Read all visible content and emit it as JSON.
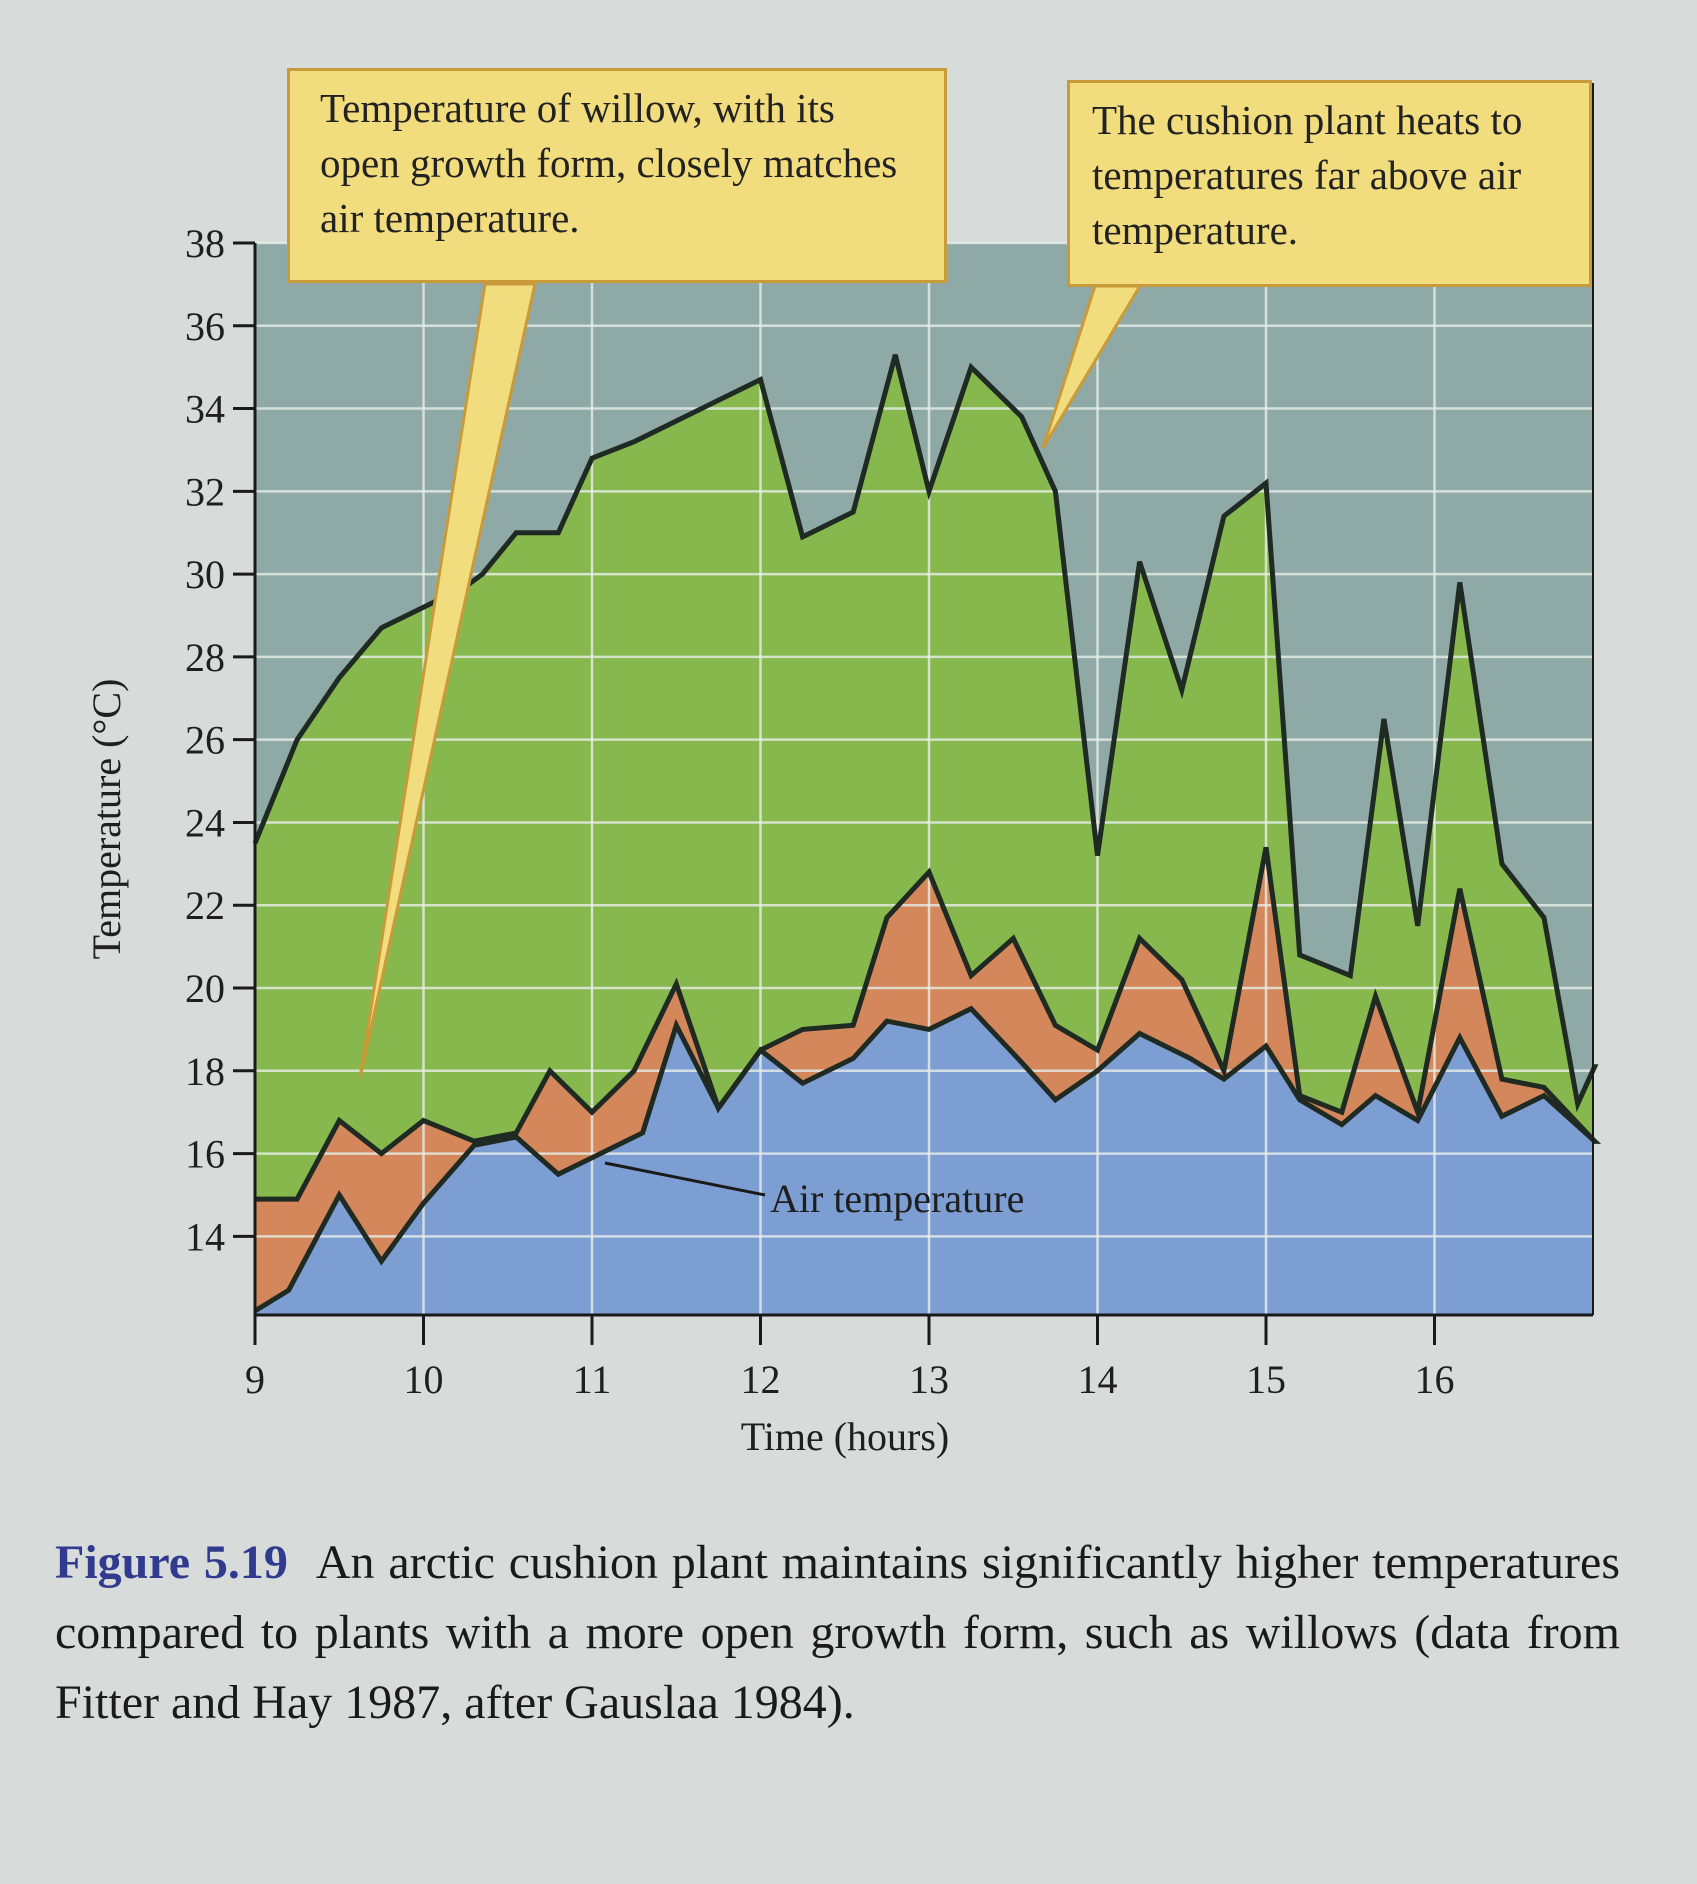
{
  "chart_data": {
    "type": "area",
    "title": "",
    "xlabel": "Time (hours)",
    "ylabel": "Temperature (°C)",
    "xlim": [
      9,
      17
    ],
    "ylim": [
      12.1,
      38
    ],
    "x_ticks": [
      "9",
      "10",
      "11",
      "12",
      "13",
      "14",
      "15",
      "16"
    ],
    "y_ticks": [
      "14",
      "16",
      "18",
      "20",
      "22",
      "24",
      "26",
      "28",
      "30",
      "32",
      "34",
      "36",
      "38"
    ],
    "grid": true,
    "series": [
      {
        "name": "Cushion plant",
        "color": "#86b84e",
        "points": [
          [
            9.0,
            23.5
          ],
          [
            9.25,
            26.0
          ],
          [
            9.5,
            27.5
          ],
          [
            9.75,
            28.7
          ],
          [
            10.0,
            29.2
          ],
          [
            10.25,
            29.7
          ],
          [
            10.35,
            30.0
          ],
          [
            10.55,
            31.0
          ],
          [
            10.8,
            31.0
          ],
          [
            11.0,
            32.8
          ],
          [
            11.25,
            33.2
          ],
          [
            11.5,
            33.7
          ],
          [
            11.75,
            34.2
          ],
          [
            12.0,
            34.7
          ],
          [
            12.25,
            30.9
          ],
          [
            12.55,
            31.5
          ],
          [
            12.8,
            35.3
          ],
          [
            13.0,
            32.0
          ],
          [
            13.25,
            35.0
          ],
          [
            13.55,
            33.8
          ],
          [
            13.75,
            32.0
          ],
          [
            14.0,
            23.2
          ],
          [
            14.25,
            30.3
          ],
          [
            14.5,
            27.2
          ],
          [
            14.75,
            31.4
          ],
          [
            15.0,
            32.2
          ],
          [
            15.2,
            20.8
          ],
          [
            15.5,
            20.3
          ],
          [
            15.7,
            26.5
          ],
          [
            15.9,
            21.5
          ],
          [
            16.15,
            29.8
          ],
          [
            16.4,
            23.0
          ],
          [
            16.65,
            21.7
          ],
          [
            16.85,
            17.2
          ],
          [
            16.95,
            18.1
          ]
        ]
      },
      {
        "name": "Willow",
        "color": "#d3875a",
        "points": [
          [
            9.0,
            14.9
          ],
          [
            9.25,
            14.9
          ],
          [
            9.5,
            16.8
          ],
          [
            9.75,
            16.0
          ],
          [
            10.0,
            16.8
          ],
          [
            10.3,
            16.3
          ],
          [
            10.55,
            16.5
          ],
          [
            10.75,
            18.0
          ],
          [
            11.0,
            17.0
          ],
          [
            11.25,
            18.0
          ],
          [
            11.5,
            20.1
          ],
          [
            11.75,
            17.1
          ],
          [
            12.0,
            18.5
          ],
          [
            12.25,
            19.0
          ],
          [
            12.55,
            19.1
          ],
          [
            12.75,
            21.7
          ],
          [
            13.0,
            22.8
          ],
          [
            13.25,
            20.3
          ],
          [
            13.5,
            21.2
          ],
          [
            13.75,
            19.1
          ],
          [
            14.0,
            18.5
          ],
          [
            14.25,
            21.2
          ],
          [
            14.5,
            20.2
          ],
          [
            14.75,
            18.0
          ],
          [
            15.0,
            23.4
          ],
          [
            15.2,
            17.4
          ],
          [
            15.45,
            17.0
          ],
          [
            15.65,
            19.8
          ],
          [
            15.9,
            17.0
          ],
          [
            16.15,
            22.4
          ],
          [
            16.4,
            17.8
          ],
          [
            16.65,
            17.6
          ],
          [
            16.95,
            16.3
          ]
        ]
      },
      {
        "name": "Air temperature",
        "color": "#7d9ed3",
        "points": [
          [
            9.0,
            12.2
          ],
          [
            9.2,
            12.7
          ],
          [
            9.5,
            15.0
          ],
          [
            9.75,
            13.4
          ],
          [
            10.0,
            14.8
          ],
          [
            10.3,
            16.2
          ],
          [
            10.55,
            16.4
          ],
          [
            10.8,
            15.5
          ],
          [
            11.0,
            15.9
          ],
          [
            11.3,
            16.5
          ],
          [
            11.5,
            19.1
          ],
          [
            11.75,
            17.1
          ],
          [
            12.0,
            18.5
          ],
          [
            12.25,
            17.7
          ],
          [
            12.55,
            18.3
          ],
          [
            12.75,
            19.2
          ],
          [
            13.0,
            19.0
          ],
          [
            13.25,
            19.5
          ],
          [
            13.55,
            18.2
          ],
          [
            13.75,
            17.3
          ],
          [
            14.0,
            18.0
          ],
          [
            14.25,
            18.9
          ],
          [
            14.55,
            18.3
          ],
          [
            14.75,
            17.8
          ],
          [
            15.0,
            18.6
          ],
          [
            15.2,
            17.3
          ],
          [
            15.45,
            16.7
          ],
          [
            15.65,
            17.4
          ],
          [
            15.9,
            16.8
          ],
          [
            16.15,
            18.8
          ],
          [
            16.4,
            16.9
          ],
          [
            16.65,
            17.4
          ],
          [
            16.95,
            16.3
          ]
        ]
      }
    ],
    "background_color": "#8faaa6",
    "annotations": {
      "air": "Air temperature",
      "willow": "Temperature of willow, with its open growth form, closely matches air temperature.",
      "cushion": "The cushion plant heats to temperatures far above air temperature."
    }
  },
  "caption": {
    "figure_number": "Figure 5.19",
    "text": "An arctic cushion plant maintains significantly higher temperatures compared to plants with a more open growth form, such as willows (data from Fitter and Hay 1987, after Gauslaa 1984)."
  }
}
